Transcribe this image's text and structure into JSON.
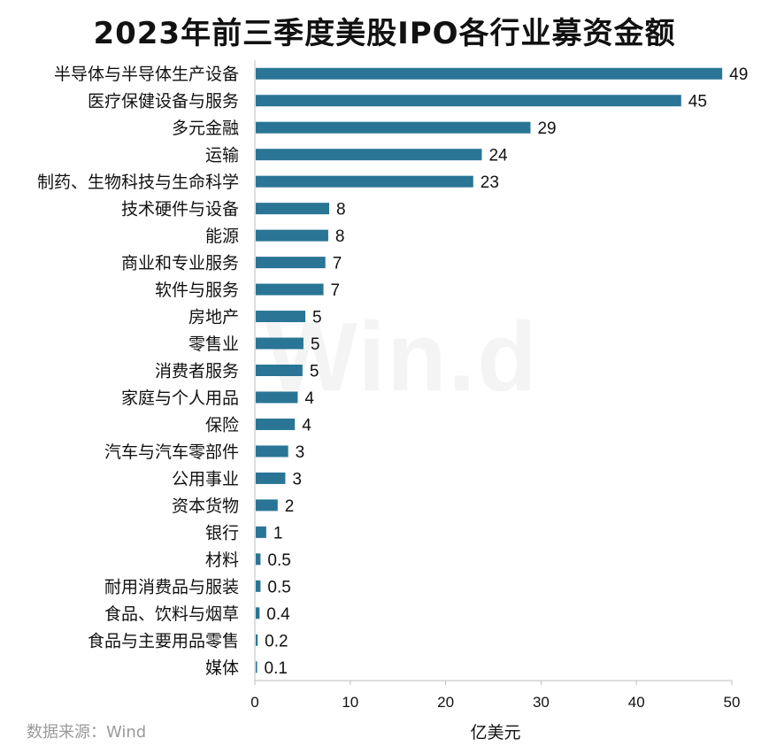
{
  "title": "2023年前三季度美股IPO各行业募资金额",
  "source": "数据来源：Wind",
  "watermark": "Win.d",
  "chart_data": {
    "type": "bar",
    "orientation": "horizontal",
    "title": "2023年前三季度美股IPO各行业募资金额",
    "xlabel": "亿美元",
    "ylabel": "",
    "xlim": [
      0,
      50
    ],
    "xticks": [
      0,
      10,
      20,
      30,
      40,
      50
    ],
    "grid": false,
    "bar_color": "#2a7596",
    "categories": [
      "半导体与半导体生产设备",
      "医疗保健设备与服务",
      "多元金融",
      "运输",
      "制药、生物科技与生命科学",
      "技术硬件与设备",
      "能源",
      "商业和专业服务",
      "软件与服务",
      "房地产",
      "零售业",
      "消费者服务",
      "家庭与个人用品",
      "保险",
      "汽车与汽车零部件",
      "公用事业",
      "资本货物",
      "银行",
      "材料",
      "耐用消费品与服装",
      "食品、饮料与烟草",
      "食品与主要用品零售",
      "媒体"
    ],
    "values": [
      48.9,
      44.6,
      28.8,
      23.7,
      22.8,
      7.7,
      7.6,
      7.3,
      7.1,
      5.2,
      5.0,
      4.9,
      4.4,
      4.1,
      3.4,
      3.1,
      2.3,
      1.1,
      0.5,
      0.5,
      0.4,
      0.2,
      0.1
    ],
    "labels": [
      "49",
      "45",
      "29",
      "24",
      "23",
      "8",
      "8",
      "7",
      "7",
      "5",
      "5",
      "5",
      "4",
      "4",
      "3",
      "3",
      "2",
      "1",
      "0.5",
      "0.5",
      "0.4",
      "0.2",
      "0.1"
    ]
  }
}
